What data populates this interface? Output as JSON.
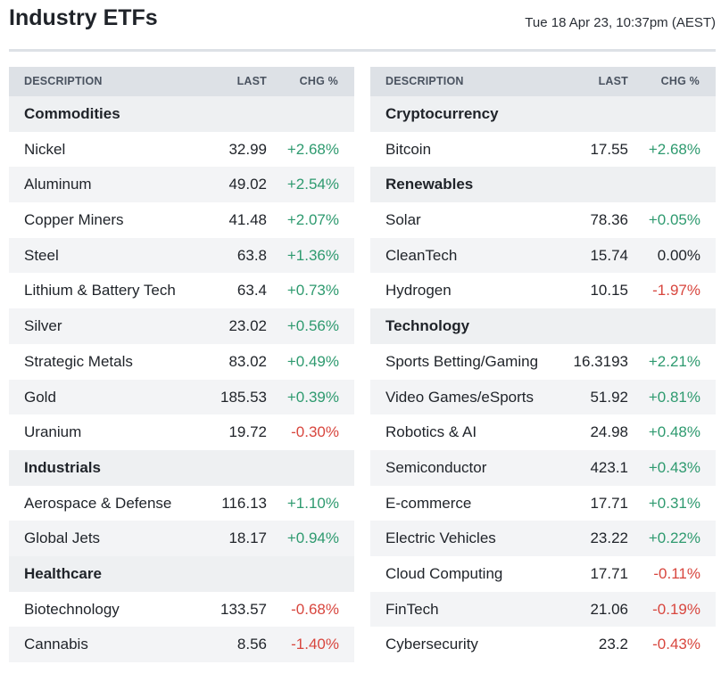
{
  "header": {
    "title": "Industry ETFs",
    "timestamp": "Tue 18 Apr 23, 10:37pm (AEST)"
  },
  "columns": {
    "description": "DESCRIPTION",
    "last": "LAST",
    "chg": "CHG %"
  },
  "left": {
    "g_commodities": "Commodities",
    "commodities": [
      {
        "name": "Nickel",
        "last": "32.99",
        "chg": "+2.68%"
      },
      {
        "name": "Aluminum",
        "last": "49.02",
        "chg": "+2.54%"
      },
      {
        "name": "Copper Miners",
        "last": "41.48",
        "chg": "+2.07%"
      },
      {
        "name": "Steel",
        "last": "63.8",
        "chg": "+1.36%"
      },
      {
        "name": "Lithium & Battery Tech",
        "last": "63.4",
        "chg": "+0.73%"
      },
      {
        "name": "Silver",
        "last": "23.02",
        "chg": "+0.56%"
      },
      {
        "name": "Strategic Metals",
        "last": "83.02",
        "chg": "+0.49%"
      },
      {
        "name": "Gold",
        "last": "185.53",
        "chg": "+0.39%"
      },
      {
        "name": "Uranium",
        "last": "19.72",
        "chg": "-0.30%"
      }
    ],
    "g_industrials": "Industrials",
    "industrials": [
      {
        "name": "Aerospace & Defense",
        "last": "116.13",
        "chg": "+1.10%"
      },
      {
        "name": "Global Jets",
        "last": "18.17",
        "chg": "+0.94%"
      }
    ],
    "g_healthcare": "Healthcare",
    "healthcare": [
      {
        "name": "Biotechnology",
        "last": "133.57",
        "chg": "-0.68%"
      },
      {
        "name": "Cannabis",
        "last": "8.56",
        "chg": "-1.40%"
      }
    ]
  },
  "right": {
    "g_crypto": "Cryptocurrency",
    "crypto": [
      {
        "name": "Bitcoin",
        "last": "17.55",
        "chg": "+2.68%"
      }
    ],
    "g_renewables": "Renewables",
    "renewables": [
      {
        "name": "Solar",
        "last": "78.36",
        "chg": "+0.05%"
      },
      {
        "name": "CleanTech",
        "last": "15.74",
        "chg": "0.00%"
      },
      {
        "name": "Hydrogen",
        "last": "10.15",
        "chg": "-1.97%"
      }
    ],
    "g_technology": "Technology",
    "technology": [
      {
        "name": "Sports Betting/Gaming",
        "last": "16.3193",
        "chg": "+2.21%"
      },
      {
        "name": "Video Games/eSports",
        "last": "51.92",
        "chg": "+0.81%"
      },
      {
        "name": "Robotics & AI",
        "last": "24.98",
        "chg": "+0.48%"
      },
      {
        "name": "Semiconductor",
        "last": "423.1",
        "chg": "+0.43%"
      },
      {
        "name": "E-commerce",
        "last": "17.71",
        "chg": "+0.31%"
      },
      {
        "name": "Electric Vehicles",
        "last": "23.22",
        "chg": "+0.22%"
      },
      {
        "name": "Cloud Computing",
        "last": "17.71",
        "chg": "-0.11%"
      },
      {
        "name": "FinTech",
        "last": "21.06",
        "chg": "-0.19%"
      },
      {
        "name": "Cybersecurity",
        "last": "23.2",
        "chg": "-0.43%"
      }
    ]
  },
  "colors": {
    "positive": "#2e9a6f",
    "negative": "#d8463e",
    "header_bg": "#dde1e6",
    "group_bg": "#eef0f2"
  }
}
